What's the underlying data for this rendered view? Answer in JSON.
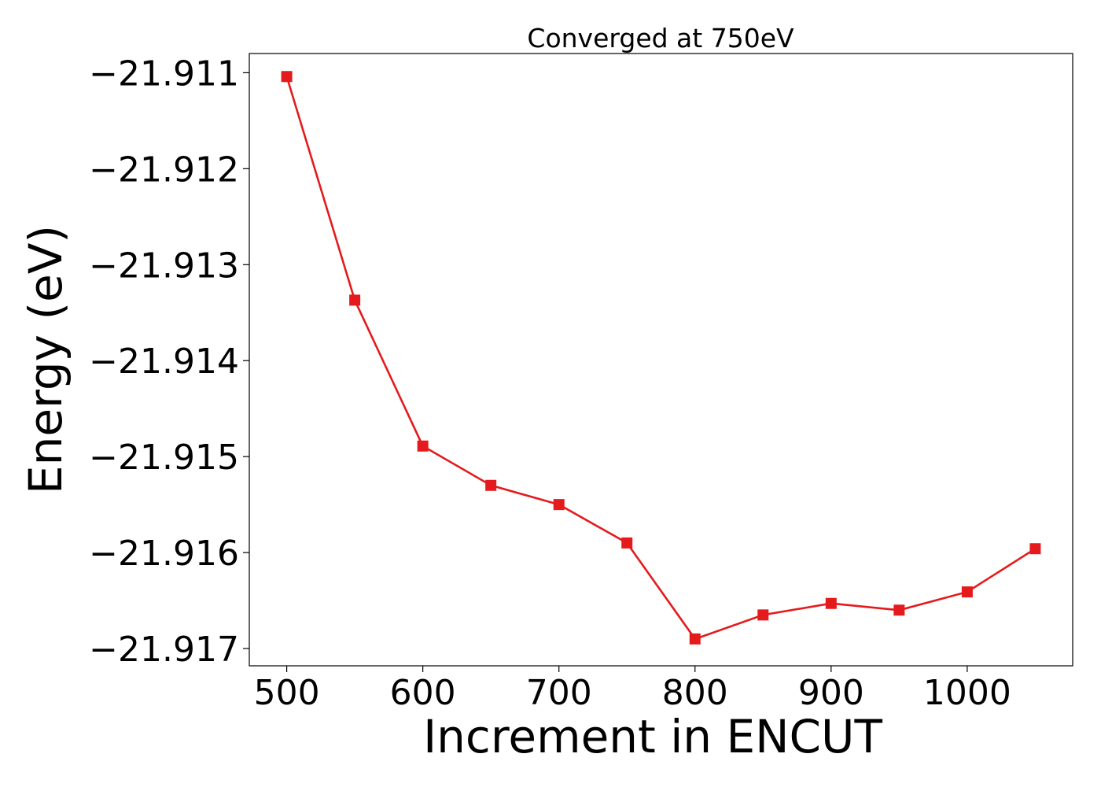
{
  "chart_data": {
    "type": "line",
    "title": "Converged at 750eV",
    "xlabel": "Increment in ENCUT",
    "ylabel": "Energy (eV)",
    "x": [
      500,
      550,
      600,
      650,
      700,
      750,
      800,
      850,
      900,
      950,
      1000,
      1050
    ],
    "series": [
      {
        "values": [
          -21.91104,
          -21.91337,
          -21.91489,
          -21.9153,
          -21.9155,
          -21.9159,
          -21.9169,
          -21.91665,
          -21.91653,
          -21.9166,
          -21.91641,
          -21.91596
        ],
        "color": "#e41a1c",
        "marker": "square"
      }
    ],
    "xlim": [
      472.5,
      1077.5
    ],
    "ylim": [
      -21.91718,
      -21.9108
    ],
    "xticks": [
      500,
      600,
      700,
      800,
      900,
      1000
    ],
    "xtick_labels": [
      "500",
      "600",
      "700",
      "800",
      "900",
      "1000"
    ],
    "yticks": [
      -21.911,
      -21.912,
      -21.913,
      -21.914,
      -21.915,
      -21.916,
      -21.917
    ],
    "ytick_labels": [
      "−21.911",
      "−21.912",
      "−21.913",
      "−21.914",
      "−21.915",
      "−21.916",
      "−21.917"
    ],
    "grid": false,
    "legend": "none"
  }
}
